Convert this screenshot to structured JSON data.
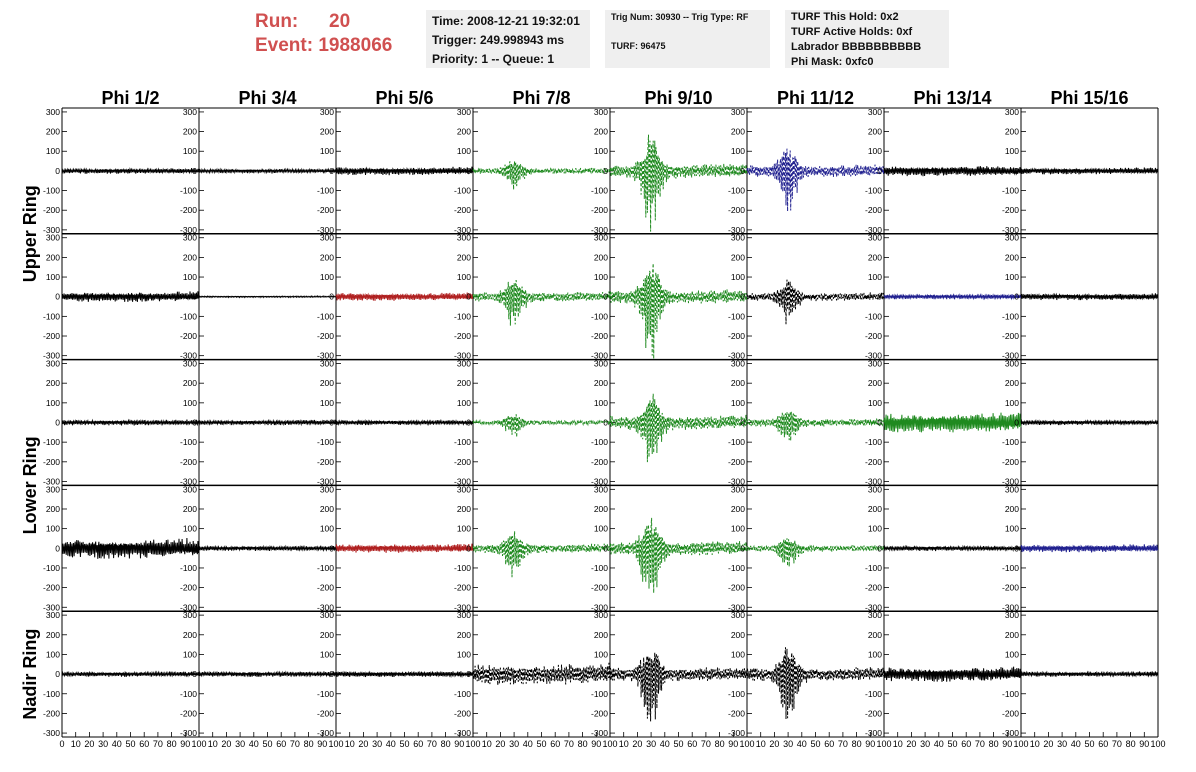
{
  "header": {
    "run_label": "Run:",
    "run_value": "20",
    "event_label": "Event:",
    "event_value": "1988066",
    "time_line": "Time: 2008-12-21 19:32:01",
    "trigger_line": "Trigger: 249.998943 ms",
    "priority_line": "Priority: 1 -- Queue: 1",
    "trig_num_line": "Trig Num: 30930 -- Trig Type: RF",
    "turf_line": "TURF: 96475",
    "turf_hold_line": "TURF This Hold: 0x2",
    "turf_active_line": "TURF Active Holds: 0xf",
    "labrador_line": "Labrador BBBBBBBBBB",
    "phi_mask_line": "Phi Mask: 0xfc0"
  },
  "chart_data": {
    "type": "line",
    "columns": [
      "Phi 1/2",
      "Phi 3/4",
      "Phi 5/6",
      "Phi 7/8",
      "Phi 9/10",
      "Phi 11/12",
      "Phi 13/14",
      "Phi 15/16"
    ],
    "ring_labels": [
      "Upper Ring",
      "Lower Ring",
      "Nadir Ring"
    ],
    "rows_per_ring": [
      2,
      2,
      1
    ],
    "xlim": [
      0,
      100
    ],
    "ylim": [
      -320,
      320
    ],
    "x_ticks": [
      0,
      10,
      20,
      30,
      40,
      50,
      60,
      70,
      80,
      90,
      100
    ],
    "y_ticks": [
      -300,
      -200,
      -100,
      0,
      100,
      200,
      300
    ],
    "colors": {
      "black": "#000000",
      "green": "#1f8a1f",
      "blue": "#20208f",
      "red": "#b02020"
    },
    "grid": false,
    "panels": [
      [
        {
          "c": "black",
          "a": 15,
          "d": 0
        },
        {
          "c": "black",
          "a": 12,
          "d": 0
        },
        {
          "c": "black",
          "a": 22,
          "d": 0
        },
        {
          "c": "green",
          "a": 90,
          "d": 1
        },
        {
          "c": "green",
          "a": 300,
          "d": 1
        },
        {
          "c": "blue",
          "a": 190,
          "d": 1
        },
        {
          "c": "black",
          "a": 28,
          "d": 0
        },
        {
          "c": "black",
          "a": 18,
          "d": 0
        }
      ],
      [
        {
          "c": "black",
          "a": 28,
          "d": 0
        },
        {
          "c": "black",
          "a": 4,
          "d": 0
        },
        {
          "c": "red",
          "a": 22,
          "d": 0
        },
        {
          "c": "green",
          "a": 150,
          "d": 1
        },
        {
          "c": "green",
          "a": 310,
          "d": 1
        },
        {
          "c": "black",
          "a": 130,
          "d": 1
        },
        {
          "c": "blue",
          "a": 14,
          "d": 0
        },
        {
          "c": "black",
          "a": 18,
          "d": 0
        }
      ],
      [
        {
          "c": "black",
          "a": 16,
          "d": 0
        },
        {
          "c": "black",
          "a": 14,
          "d": 0
        },
        {
          "c": "black",
          "a": 14,
          "d": 0
        },
        {
          "c": "green",
          "a": 70,
          "d": 1
        },
        {
          "c": "green",
          "a": 240,
          "d": 1
        },
        {
          "c": "green",
          "a": 120,
          "d": 1
        },
        {
          "c": "green",
          "a": 55,
          "d": 0
        },
        {
          "c": "black",
          "a": 14,
          "d": 0
        }
      ],
      [
        {
          "c": "black",
          "a": 55,
          "d": 0
        },
        {
          "c": "black",
          "a": 14,
          "d": 0
        },
        {
          "c": "red",
          "a": 24,
          "d": 0
        },
        {
          "c": "green",
          "a": 140,
          "d": 1
        },
        {
          "c": "green",
          "a": 300,
          "d": 1
        },
        {
          "c": "green",
          "a": 100,
          "d": 1
        },
        {
          "c": "black",
          "a": 14,
          "d": 0
        },
        {
          "c": "blue",
          "a": 22,
          "d": 0
        }
      ],
      [
        {
          "c": "black",
          "a": 14,
          "d": 0
        },
        {
          "c": "black",
          "a": 14,
          "d": 0
        },
        {
          "c": "black",
          "a": 16,
          "d": 0
        },
        {
          "c": "black",
          "a": 60,
          "d": 1
        },
        {
          "c": "black",
          "a": 240,
          "d": 1
        },
        {
          "c": "black",
          "a": 220,
          "d": 1
        },
        {
          "c": "black",
          "a": 40,
          "d": 0
        },
        {
          "c": "black",
          "a": 14,
          "d": 0
        }
      ]
    ]
  }
}
